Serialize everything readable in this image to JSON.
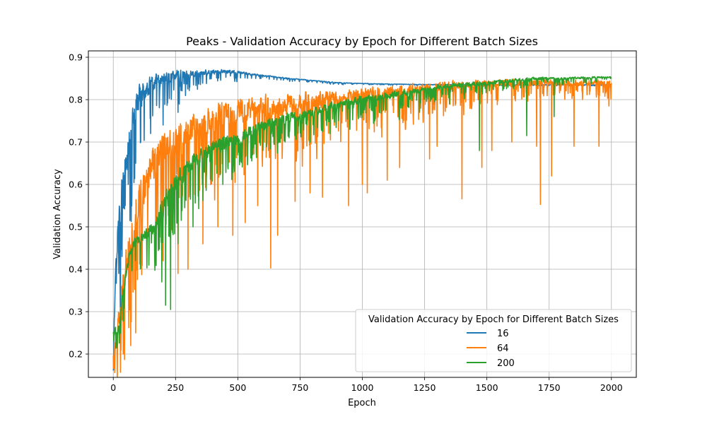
{
  "chart_data": {
    "type": "line",
    "title": "Peaks - Validation Accuracy by Epoch for Different Batch Sizes",
    "xlabel": "Epoch",
    "ylabel": "Validation Accuracy",
    "xlim": [
      -100,
      2100
    ],
    "ylim": [
      0.145,
      0.915
    ],
    "xticks": [
      0,
      250,
      500,
      750,
      1000,
      1250,
      1500,
      1750,
      2000
    ],
    "yticks": [
      0.2,
      0.3,
      0.4,
      0.5,
      0.6,
      0.7,
      0.8,
      0.9
    ],
    "grid": true,
    "legend": {
      "title": "Validation Accuracy by Epoch for Different Batch Sizes",
      "placement": "lower-right"
    },
    "series": [
      {
        "name": "16",
        "color": "#1f77b4",
        "x": [
          0,
          10,
          20,
          30,
          40,
          50,
          60,
          70,
          80,
          90,
          100,
          120,
          140,
          160,
          180,
          200,
          230,
          260,
          300,
          350,
          400,
          450,
          500,
          550,
          600,
          700,
          800,
          900,
          1000,
          1100,
          1200,
          1400,
          1600,
          1800,
          2000
        ],
        "values": [
          0.19,
          0.43,
          0.5,
          0.58,
          0.6,
          0.64,
          0.68,
          0.72,
          0.76,
          0.78,
          0.8,
          0.82,
          0.83,
          0.84,
          0.845,
          0.85,
          0.855,
          0.86,
          0.862,
          0.863,
          0.865,
          0.866,
          0.865,
          0.86,
          0.857,
          0.85,
          0.845,
          0.84,
          0.838,
          0.837,
          0.836,
          0.835,
          0.835,
          0.835,
          0.835
        ],
        "band": [
          0.02,
          0.05,
          0.08,
          0.1,
          0.1,
          0.1,
          0.1,
          0.1,
          0.09,
          0.08,
          0.07,
          0.06,
          0.05,
          0.045,
          0.04,
          0.035,
          0.03,
          0.025,
          0.02,
          0.015,
          0.012,
          0.01,
          0.008,
          0.005,
          0.004,
          0.003,
          0.002,
          0.002,
          0.001,
          0.001,
          0.001,
          0.001,
          0.001,
          0.001,
          0.001
        ],
        "dips": [
          [
            22,
            0.39
          ],
          [
            35,
            0.43
          ],
          [
            48,
            0.55
          ],
          [
            60,
            0.6
          ],
          [
            75,
            0.58
          ],
          [
            90,
            0.65
          ],
          [
            110,
            0.7
          ],
          [
            150,
            0.72
          ],
          [
            200,
            0.74
          ],
          [
            260,
            0.77
          ]
        ]
      },
      {
        "name": "64",
        "color": "#ff7f0e",
        "x": [
          0,
          20,
          40,
          60,
          80,
          100,
          150,
          200,
          300,
          400,
          500,
          600,
          700,
          800,
          900,
          1000,
          1200,
          1400,
          1600,
          1800,
          2000
        ],
        "values": [
          0.2,
          0.27,
          0.38,
          0.45,
          0.5,
          0.56,
          0.64,
          0.69,
          0.73,
          0.76,
          0.775,
          0.785,
          0.79,
          0.8,
          0.805,
          0.81,
          0.825,
          0.835,
          0.84,
          0.84,
          0.84
        ],
        "band": [
          0.03,
          0.06,
          0.08,
          0.1,
          0.1,
          0.1,
          0.1,
          0.09,
          0.08,
          0.07,
          0.065,
          0.06,
          0.055,
          0.05,
          0.045,
          0.04,
          0.03,
          0.025,
          0.02,
          0.015,
          0.015
        ],
        "dips": [
          [
            40,
            0.2
          ],
          [
            70,
            0.22
          ],
          [
            90,
            0.25
          ],
          [
            200,
            0.42
          ],
          [
            260,
            0.39
          ],
          [
            300,
            0.4
          ],
          [
            360,
            0.46
          ],
          [
            420,
            0.5
          ],
          [
            480,
            0.48
          ],
          [
            530,
            0.51
          ],
          [
            580,
            0.55
          ],
          [
            632,
            0.403
          ],
          [
            660,
            0.48
          ],
          [
            730,
            0.56
          ],
          [
            790,
            0.58
          ],
          [
            840,
            0.57
          ],
          [
            945,
            0.55
          ],
          [
            1000,
            0.6
          ],
          [
            1020,
            0.58
          ],
          [
            1100,
            0.61
          ],
          [
            1150,
            0.64
          ],
          [
            1270,
            0.66
          ],
          [
            1300,
            0.69
          ],
          [
            1400,
            0.566
          ],
          [
            1480,
            0.64
          ],
          [
            1520,
            0.68
          ],
          [
            1600,
            0.7
          ],
          [
            1700,
            0.69
          ],
          [
            1715,
            0.553
          ],
          [
            1760,
            0.62
          ],
          [
            1850,
            0.69
          ],
          [
            1950,
            0.69
          ],
          [
            1990,
            0.785
          ]
        ]
      },
      {
        "name": "200",
        "color": "#2ca02c",
        "x": [
          0,
          20,
          40,
          60,
          80,
          100,
          150,
          200,
          250,
          300,
          400,
          500,
          600,
          700,
          800,
          900,
          1000,
          1100,
          1200,
          1300,
          1400,
          1500,
          1600,
          1700,
          1800,
          1900,
          2000
        ],
        "values": [
          0.25,
          0.26,
          0.35,
          0.42,
          0.46,
          0.47,
          0.49,
          0.55,
          0.6,
          0.64,
          0.69,
          0.71,
          0.74,
          0.76,
          0.77,
          0.79,
          0.8,
          0.81,
          0.82,
          0.83,
          0.835,
          0.84,
          0.845,
          0.85,
          0.85,
          0.852,
          0.853
        ],
        "band": [
          0.02,
          0.02,
          0.03,
          0.03,
          0.03,
          0.03,
          0.04,
          0.06,
          0.06,
          0.05,
          0.04,
          0.035,
          0.03,
          0.025,
          0.02,
          0.02,
          0.02,
          0.02,
          0.015,
          0.015,
          0.012,
          0.012,
          0.01,
          0.008,
          0.006,
          0.005,
          0.004
        ],
        "dips": [
          [
            195,
            0.37
          ],
          [
            210,
            0.315
          ],
          [
            230,
            0.305
          ],
          [
            260,
            0.46
          ],
          [
            320,
            0.5
          ],
          [
            440,
            0.6
          ],
          [
            560,
            0.67
          ],
          [
            690,
            0.7
          ],
          [
            790,
            0.7
          ],
          [
            870,
            0.72
          ],
          [
            950,
            0.73
          ],
          [
            1050,
            0.75
          ],
          [
            1160,
            0.78
          ],
          [
            1230,
            0.77
          ],
          [
            1350,
            0.79
          ],
          [
            1470,
            0.68
          ],
          [
            1660,
            0.715
          ],
          [
            1770,
            0.76
          ]
        ]
      }
    ]
  }
}
